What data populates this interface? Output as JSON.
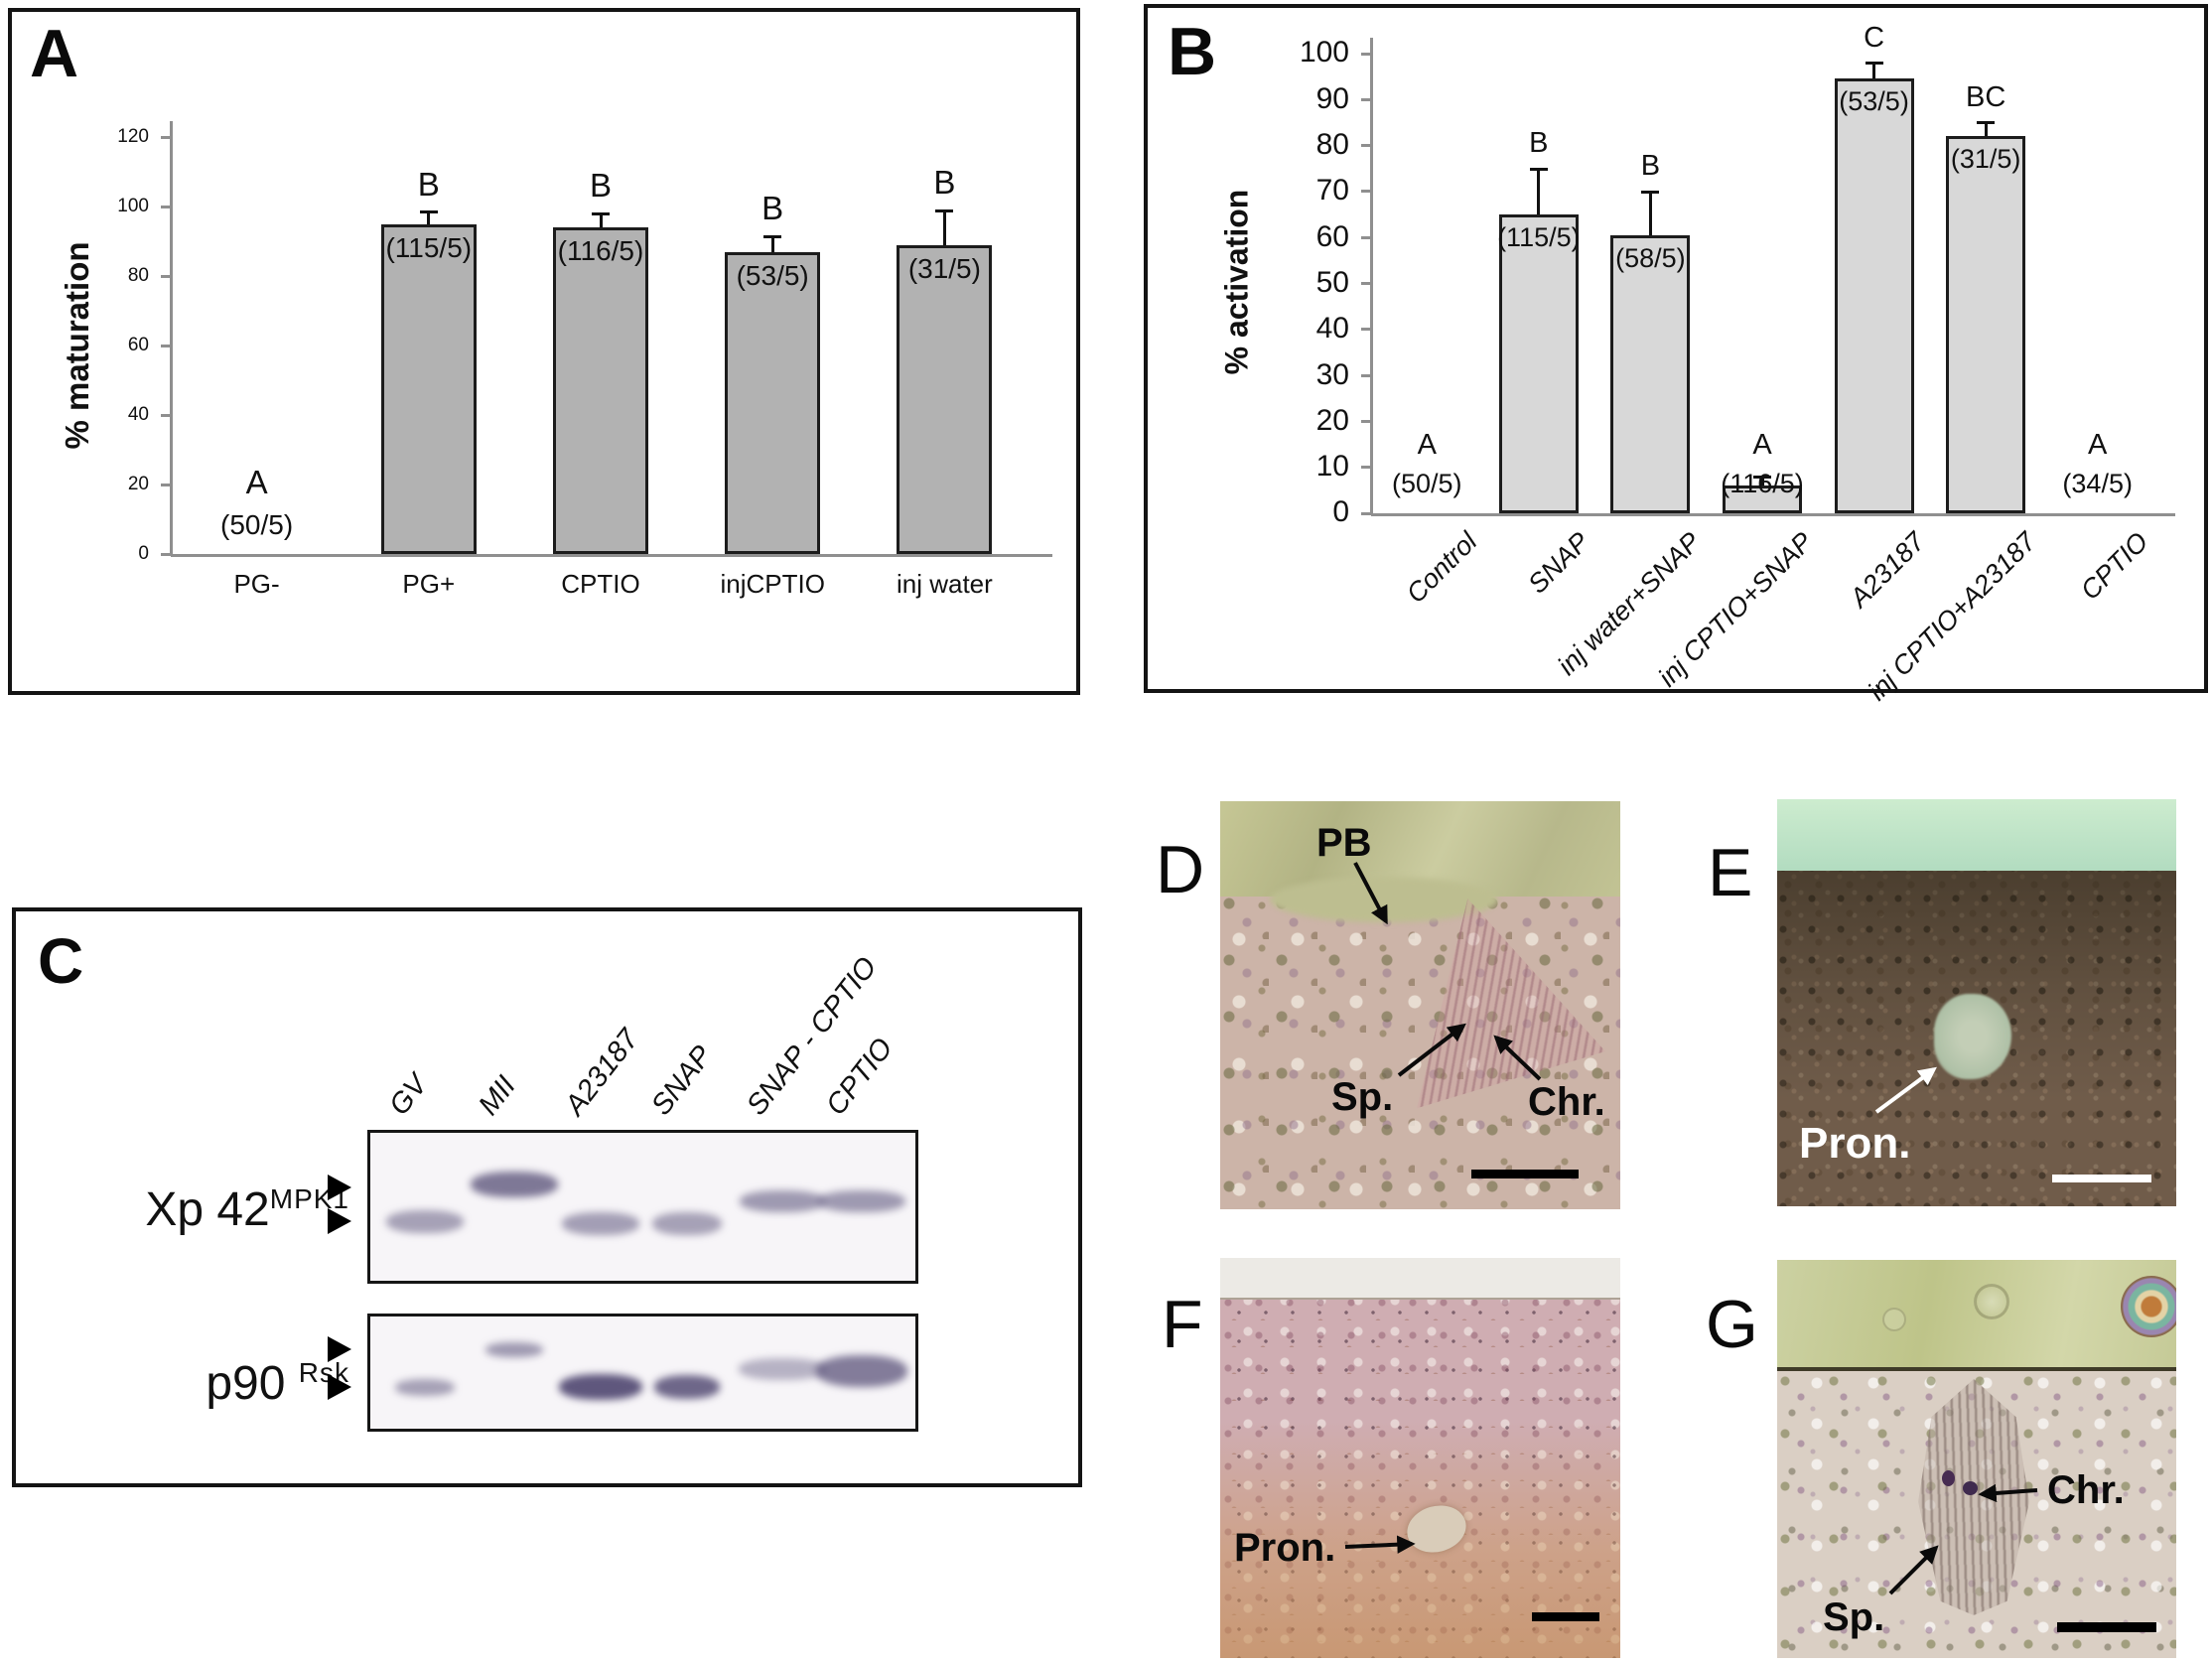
{
  "panels": {
    "A": {
      "letter": "A"
    },
    "B": {
      "letter": "B"
    },
    "C": {
      "letter": "C",
      "lanes": [
        "GV",
        "MII",
        "A23187",
        "SNAP",
        "SNAP - CPTIO",
        "CPTIO"
      ],
      "blots": [
        {
          "label": "Xp 42",
          "sup": "MPK1",
          "bands": [
            {
              "lane": 0,
              "row": "lower",
              "dark": 0.5
            },
            {
              "lane": 1,
              "row": "upper",
              "dark": 0.75,
              "w": 88,
              "h": 26,
              "dy": -3
            },
            {
              "lane": 2,
              "row": "lower",
              "dark": 0.52,
              "dy": 2
            },
            {
              "lane": 3,
              "row": "lower",
              "dark": 0.5,
              "w": 70,
              "dy": 2
            },
            {
              "lane": 4,
              "row": "mid",
              "dark": 0.55,
              "w": 86,
              "h": 22
            },
            {
              "lane": 5,
              "row": "mid",
              "dark": 0.55,
              "w": 88,
              "h": 22
            }
          ]
        },
        {
          "label": "p90",
          "sup": "Rsk",
          "bands": [
            {
              "lane": 0,
              "row": "lower",
              "dark": 0.5,
              "w": 60,
              "h": 17
            },
            {
              "lane": 1,
              "row": "upper",
              "dark": 0.55,
              "w": 58,
              "h": 15
            },
            {
              "lane": 2,
              "row": "lower",
              "dark": 0.95,
              "w": 84,
              "h": 26
            },
            {
              "lane": 3,
              "row": "lower",
              "dark": 0.85,
              "w": 66,
              "h": 24
            },
            {
              "lane": 4,
              "row": "mid",
              "dark": 0.4,
              "w": 88,
              "h": 22
            },
            {
              "lane": 5,
              "row": "mid",
              "dark": 0.72,
              "w": 92,
              "h": 32,
              "dy": 2
            }
          ]
        }
      ]
    },
    "D": {
      "letter": "D",
      "labels": {
        "pb": "PB",
        "sp": "Sp.",
        "chr": "Chr."
      }
    },
    "E": {
      "letter": "E",
      "labels": {
        "pron": "Pron."
      }
    },
    "F": {
      "letter": "F",
      "labels": {
        "pron": "Pron."
      }
    },
    "G": {
      "letter": "G",
      "labels": {
        "sp": "Sp.",
        "chr": "Chr."
      }
    }
  },
  "chart_data": [
    {
      "id": "A",
      "type": "bar",
      "title": "",
      "xlabel": "",
      "ylabel": "% maturation",
      "ylim": [
        0,
        120
      ],
      "ytick_step": 20,
      "grid": false,
      "legend": "none",
      "bar_color": "#b2b2b2",
      "categories": [
        "PG-",
        "PG+",
        "CPTIO",
        "injCPTIO",
        "inj water"
      ],
      "values": [
        0,
        95,
        94,
        87,
        89
      ],
      "errors": [
        0,
        3.5,
        4,
        4.5,
        10
      ],
      "sig_letters": [
        "A",
        "B",
        "B",
        "B",
        "B"
      ],
      "counts": [
        "(50/5)",
        "(115/5)",
        "(116/5)",
        "(53/5)",
        "(31/5)"
      ],
      "xtick_rotation": 0
    },
    {
      "id": "B",
      "type": "bar",
      "title": "",
      "xlabel": "",
      "ylabel": "% activation",
      "ylim": [
        0,
        100
      ],
      "ytick_step": 10,
      "grid": false,
      "legend": "none",
      "bar_color": "#d8d8d8",
      "categories": [
        "Control",
        "SNAP",
        "inj water+SNAP",
        "inj CPTIO+SNAP",
        "A23187",
        "inj CPTIO+A23187",
        "CPTIO"
      ],
      "values": [
        0,
        65,
        60.5,
        6,
        94.5,
        82,
        0
      ],
      "errors": [
        0,
        10,
        9.5,
        2,
        3.5,
        3,
        0
      ],
      "sig_letters": [
        "A",
        "B",
        "B",
        "A",
        "C",
        "BC",
        "A"
      ],
      "counts": [
        "(50/5)",
        "(115/5)",
        "(58/5)",
        "(116/5)",
        "(53/5)",
        "(31/5)",
        "(34/5)"
      ],
      "xtick_rotation": -45
    }
  ]
}
